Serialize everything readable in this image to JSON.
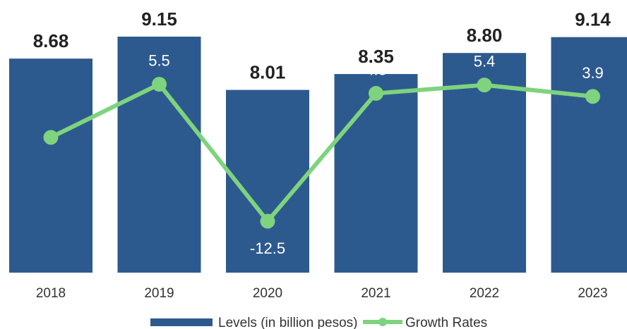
{
  "chart_data": {
    "type": "bar",
    "categories": [
      "2018",
      "2019",
      "2020",
      "2021",
      "2022",
      "2023"
    ],
    "series": [
      {
        "name": "Levels (in billion pesos)",
        "type": "bar",
        "values": [
          8.68,
          9.15,
          8.01,
          8.35,
          8.8,
          9.14
        ],
        "labels": [
          "8.68",
          "9.15",
          "8.01",
          "8.35",
          "8.80",
          "9.14"
        ],
        "color": "#2d5a8e"
      },
      {
        "name": "Growth Rates",
        "type": "line",
        "values": [
          null,
          5.5,
          -12.5,
          4.3,
          5.4,
          3.9
        ],
        "labels": [
          "",
          "5.5",
          "-12.5",
          "4.3",
          "5.4",
          "3.9"
        ],
        "color": "#7ed37e"
      }
    ],
    "title": "",
    "xlabel": "",
    "ylabel": "",
    "legend": {
      "position": "bottom",
      "entries": [
        "Levels (in billion pesos)",
        "Growth Rates"
      ]
    },
    "grid": false
  }
}
